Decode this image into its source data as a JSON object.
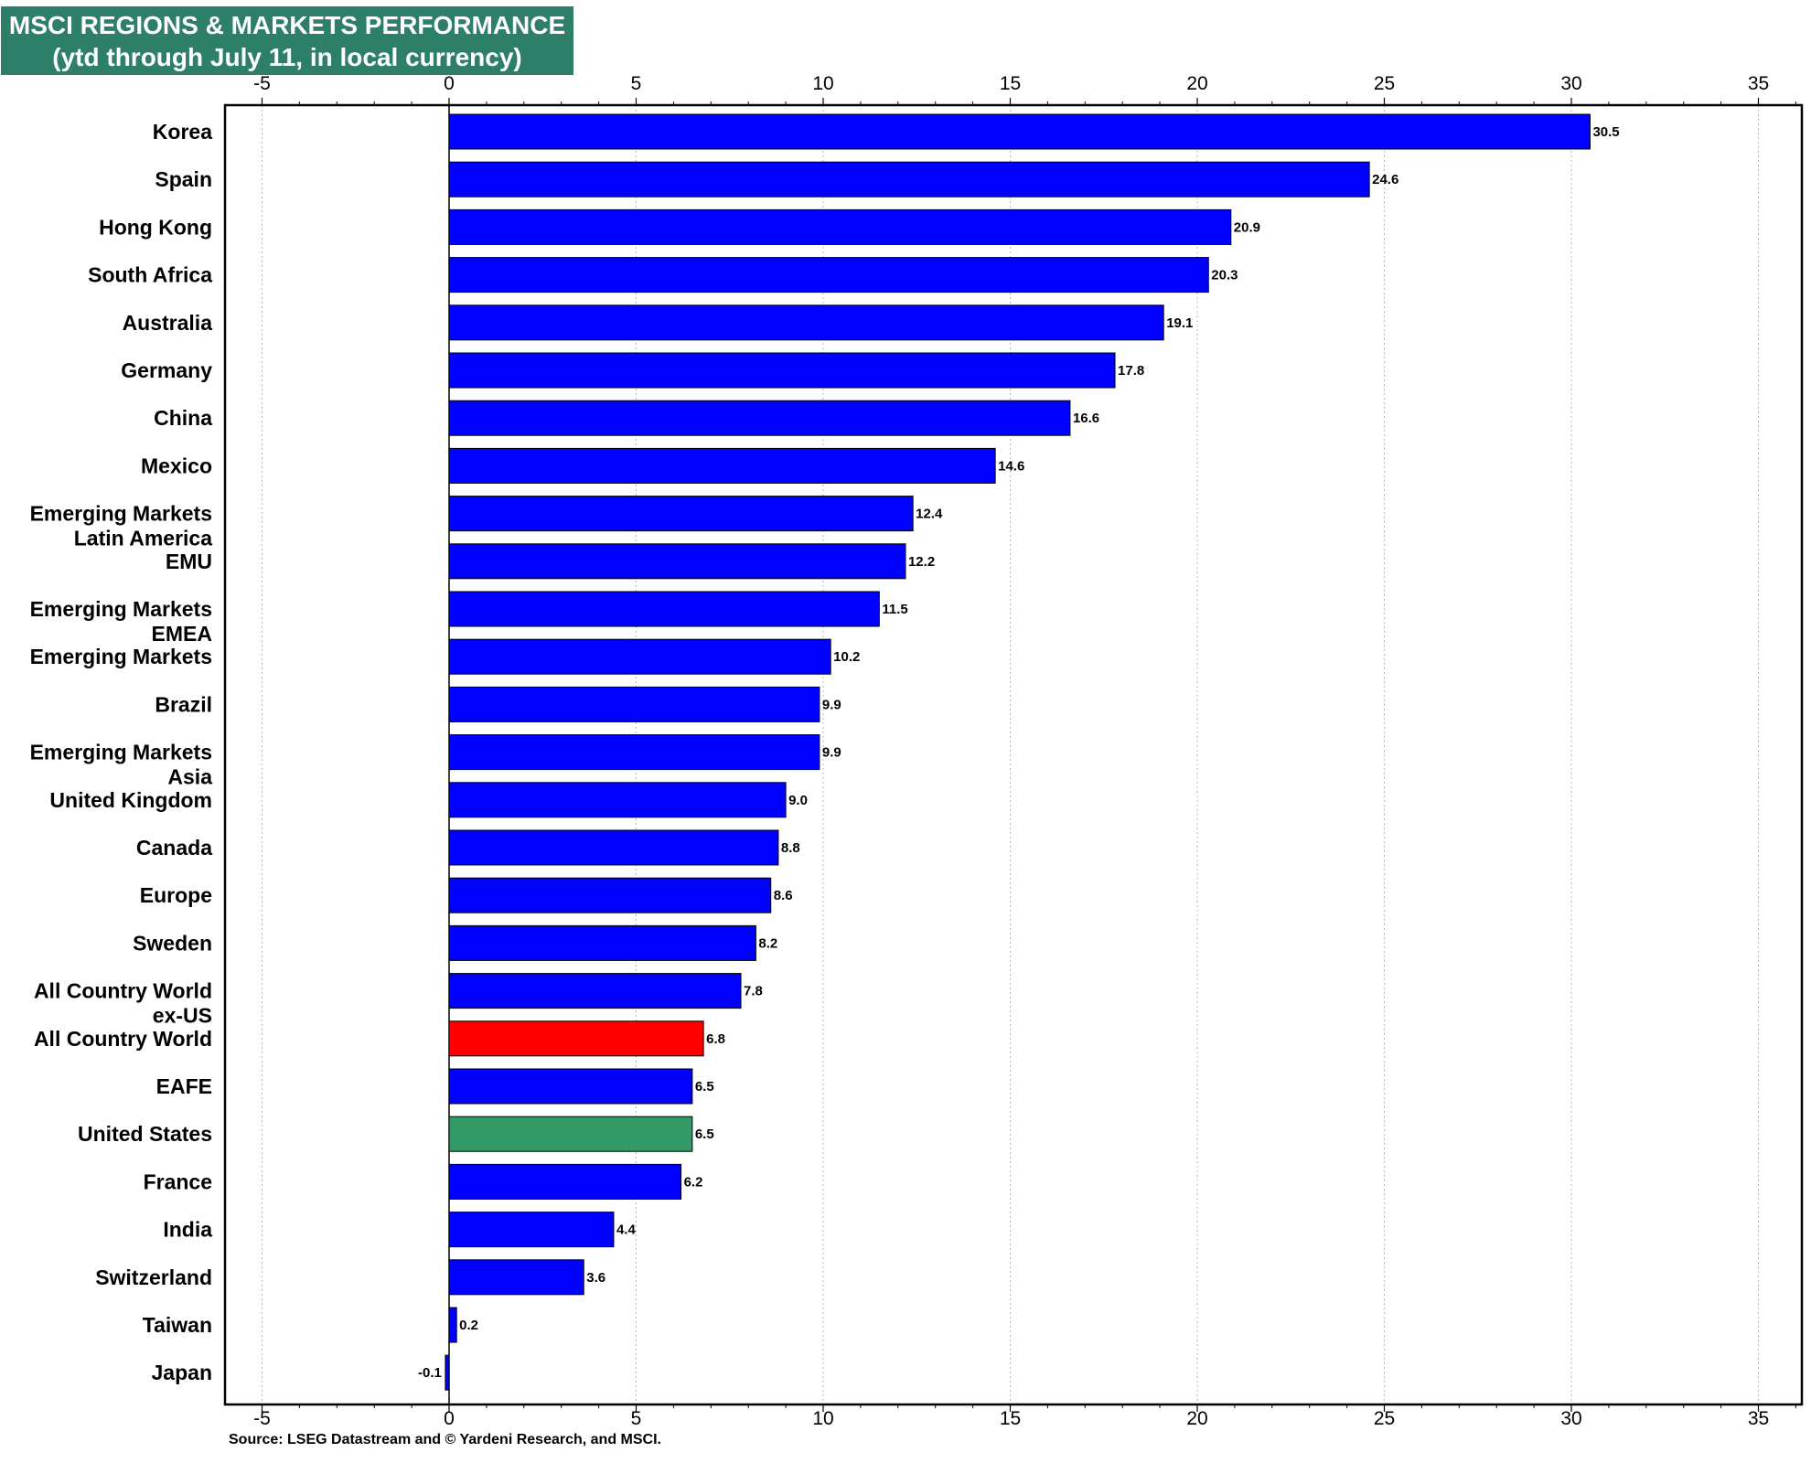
{
  "chart_data": {
    "type": "bar",
    "orientation": "horizontal",
    "title": "MSCI REGIONS & MARKETS PERFORMANCE",
    "subtitle": "(ytd through July 11, in local currency)",
    "source": "Source: LSEG Datastream and © Yardeni Research, and MSCI.",
    "xlim": [
      -5,
      36
    ],
    "xticks": [
      -5,
      0,
      5,
      10,
      15,
      20,
      25,
      30,
      35
    ],
    "grid": "vertical dotted",
    "colors": {
      "default": "#0000ff",
      "all_country_world": "#ff0000",
      "united_states": "#339966"
    },
    "categories": [
      "Korea",
      "Spain",
      "Hong Kong",
      "South Africa",
      "Australia",
      "Germany",
      "China",
      "Mexico",
      "Emerging Markets Latin America",
      "EMU",
      "Emerging Markets EMEA",
      "Emerging Markets",
      "Brazil",
      "Emerging Markets Asia",
      "United Kingdom",
      "Canada",
      "Europe",
      "Sweden",
      "All Country World ex-US",
      "All Country World",
      "EAFE",
      "United States",
      "France",
      "India",
      "Switzerland",
      "Taiwan",
      "Japan"
    ],
    "category_lines": [
      [
        "Korea"
      ],
      [
        "Spain"
      ],
      [
        "Hong Kong"
      ],
      [
        "South Africa"
      ],
      [
        "Australia"
      ],
      [
        "Germany"
      ],
      [
        "China"
      ],
      [
        "Mexico"
      ],
      [
        "Emerging Markets",
        "Latin America"
      ],
      [
        "EMU"
      ],
      [
        "Emerging Markets",
        "EMEA"
      ],
      [
        "Emerging Markets"
      ],
      [
        "Brazil"
      ],
      [
        "Emerging Markets",
        "Asia"
      ],
      [
        "United Kingdom"
      ],
      [
        "Canada"
      ],
      [
        "Europe"
      ],
      [
        "Sweden"
      ],
      [
        "All Country World",
        "ex-US"
      ],
      [
        "All Country World"
      ],
      [
        "EAFE"
      ],
      [
        "United States"
      ],
      [
        "France"
      ],
      [
        "India"
      ],
      [
        "Switzerland"
      ],
      [
        "Taiwan"
      ],
      [
        "Japan"
      ]
    ],
    "values": [
      30.5,
      24.6,
      20.9,
      20.3,
      19.1,
      17.8,
      16.6,
      14.6,
      12.4,
      12.2,
      11.5,
      10.2,
      9.9,
      9.9,
      9.0,
      8.8,
      8.6,
      8.2,
      7.8,
      6.8,
      6.5,
      6.5,
      6.2,
      4.4,
      3.6,
      0.2,
      -0.1
    ],
    "labels": [
      "30.5",
      "24.6",
      "20.9",
      "20.3",
      "19.1",
      "17.8",
      "16.6",
      "14.6",
      "12.4",
      "12.2",
      "11.5",
      "10.2",
      "9.9",
      "9.9",
      "9.0",
      "8.8",
      "8.6",
      "8.2",
      "7.8",
      "6.8",
      "6.5",
      "6.5",
      "6.2",
      "4.4",
      "3.6",
      "0.2",
      "-0.1"
    ],
    "bar_colors": [
      "default",
      "default",
      "default",
      "default",
      "default",
      "default",
      "default",
      "default",
      "default",
      "default",
      "default",
      "default",
      "default",
      "default",
      "default",
      "default",
      "default",
      "default",
      "default",
      "all_country_world",
      "default",
      "united_states",
      "default",
      "default",
      "default",
      "default",
      "default"
    ]
  }
}
